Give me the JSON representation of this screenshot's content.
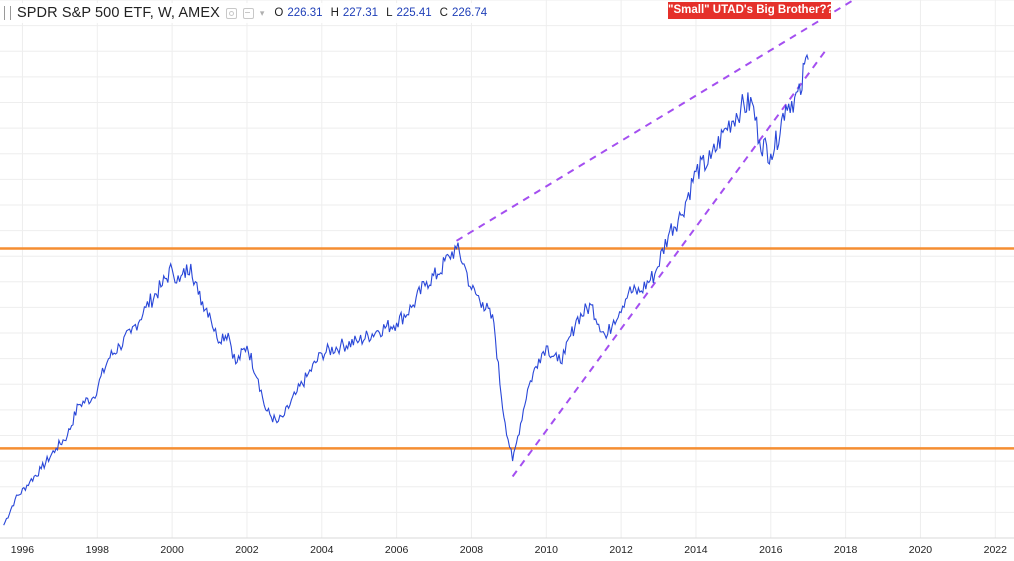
{
  "header": {
    "symbol": "SPDR S&P 500 ETF, W, AMEX",
    "ohlc": [
      {
        "label": "O",
        "value": "226.31"
      },
      {
        "label": "H",
        "value": "227.31"
      },
      {
        "label": "L",
        "value": "225.41"
      },
      {
        "label": "C",
        "value": "226.74"
      }
    ]
  },
  "annotation": "\"Small\" UTAD's Big Brother??",
  "colors": {
    "price_line": "#2947d8",
    "horizontal_levels": "#f58e32",
    "trend_lines": "#a44ff0",
    "annotation_bg": "#e5302a",
    "grid": "#eeeeee"
  },
  "chart_data": {
    "type": "line",
    "title": "",
    "xlabel": "",
    "ylabel": "",
    "xlim": [
      1995.4,
      2022.5
    ],
    "ylim": [
      40,
      250
    ],
    "grid": true,
    "x_ticks": [
      "1996",
      "1998",
      "2000",
      "2002",
      "2004",
      "2006",
      "2008",
      "2010",
      "2012",
      "2014",
      "2016",
      "2018",
      "2020",
      "2022"
    ],
    "series": [
      {
        "x": [
          1995.5,
          1995.8,
          1996.2,
          1996.5,
          1996.9,
          1997.2,
          1997.5,
          1997.9,
          1998.3,
          1998.6,
          1998.9,
          1999.3,
          1999.7,
          2000.0,
          2000.2,
          2000.5,
          2000.7,
          2001.0,
          2001.2,
          2001.5,
          2001.7,
          2002.0,
          2002.3,
          2002.5,
          2002.8,
          2003.0,
          2003.3,
          2003.6,
          2004.0,
          2004.5,
          2005.0,
          2005.5,
          2006.0,
          2006.4,
          2006.8,
          2007.1,
          2007.4,
          2007.6,
          2007.8,
          2008.0,
          2008.3,
          2008.6,
          2008.8,
          2008.9,
          2009.1,
          2009.2,
          2009.5,
          2009.8,
          2010.0,
          2010.3,
          2010.5,
          2010.8,
          2011.2,
          2011.6,
          2011.8,
          2012.2,
          2012.5,
          2012.9,
          2013.3,
          2013.6,
          2014.0,
          2014.4,
          2014.8,
          2015.2,
          2015.5,
          2015.7,
          2016.0,
          2016.1,
          2016.4,
          2016.8,
          2016.9,
          2017.0
        ],
        "y": [
          45,
          55,
          62,
          67,
          75,
          80,
          92,
          95,
          110,
          115,
          120,
          130,
          138,
          145,
          140,
          147,
          135,
          128,
          118,
          120,
          108,
          115,
          102,
          90,
          85,
          88,
          96,
          103,
          112,
          115,
          117,
          121,
          124,
          130,
          140,
          143,
          150,
          153,
          147,
          137,
          132,
          124,
          95,
          85,
          70,
          77,
          98,
          110,
          115,
          109,
          112,
          125,
          131,
          118,
          125,
          136,
          136,
          143,
          160,
          166,
          183,
          188,
          200,
          208,
          210,
          195,
          190,
          192,
          209,
          213,
          225,
          226.74
        ]
      }
    ],
    "horizontal_levels": [
      153,
      75
    ],
    "trend_lines": [
      {
        "x": [
          2007.6,
          2019.0
        ],
        "y": [
          156,
          257
        ]
      },
      {
        "x": [
          2009.1,
          2017.5
        ],
        "y": [
          64,
          231
        ]
      }
    ]
  }
}
